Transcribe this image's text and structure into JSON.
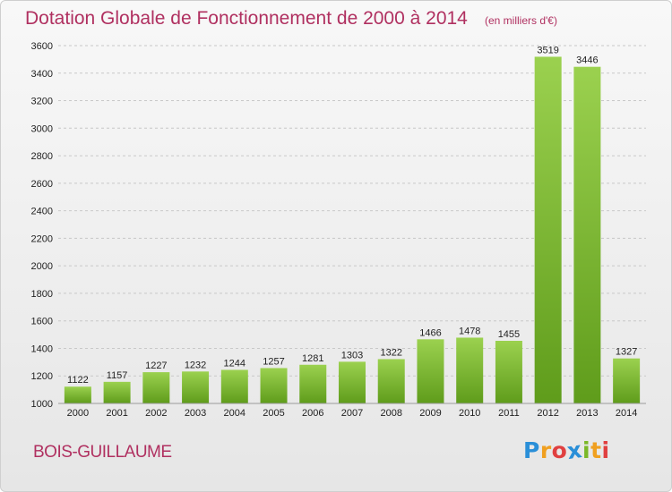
{
  "title": "Dotation Globale de Fonctionnement de 2000 à 2014",
  "unit_note": "(en milliers d'€)",
  "place": "BOIS-GUILLAUME",
  "logo": {
    "letters": [
      "P",
      "r",
      "o",
      "x",
      "i",
      "t",
      "i"
    ],
    "colors": [
      "#2a8fd8",
      "#f0a020",
      "#e04040",
      "#2a8fd8",
      "#7ab828",
      "#f0a020",
      "#e04040"
    ]
  },
  "colors": {
    "bar_top": "#9bd14f",
    "bar_bottom": "#5f9c1b",
    "grid": "#c8c8c8",
    "title": "#b03060"
  },
  "chart_data": {
    "type": "bar",
    "title": "Dotation Globale de Fonctionnement de 2000 à 2014",
    "categories": [
      "2000",
      "2001",
      "2002",
      "2003",
      "2004",
      "2005",
      "2006",
      "2007",
      "2008",
      "2009",
      "2010",
      "2011",
      "2012",
      "2013",
      "2014"
    ],
    "values": [
      1122,
      1157,
      1227,
      1232,
      1244,
      1257,
      1281,
      1303,
      1322,
      1466,
      1478,
      1455,
      3519,
      3446,
      1327
    ],
    "data_labels": [
      "1122",
      "1157",
      "1227",
      "1232",
      "1244",
      "1257",
      "1281",
      "1303",
      "1322",
      "1466",
      "1478",
      "1455",
      "3519",
      "3446",
      "1327"
    ],
    "y_ticks": [
      "1000",
      "1200",
      "1400",
      "1600",
      "1800",
      "2000",
      "2200",
      "2400",
      "2600",
      "2800",
      "3000",
      "3200",
      "3400",
      "3600"
    ],
    "ylim": [
      1000,
      3600
    ],
    "grid": true,
    "xlabel": "",
    "ylabel": ""
  }
}
